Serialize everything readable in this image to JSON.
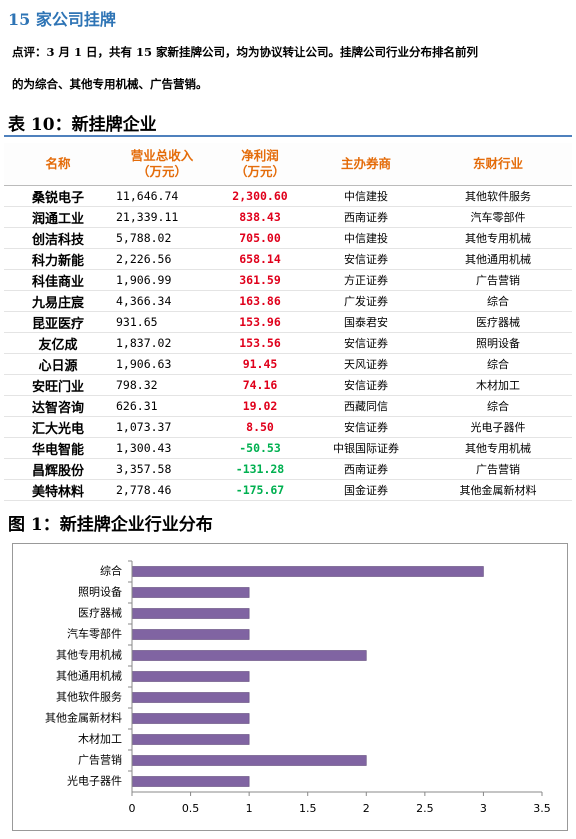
{
  "section_title": "15 家公司挂牌",
  "comment": [
    "点评：3 月 1 日，共有 15 家新挂牌公司，均为协议转让公司。挂牌公司行业分布排名前列",
    "的为综合、其他专用机械、广告营销。"
  ],
  "table": {
    "title": "表 10：新挂牌企业",
    "headers": [
      [
        "名称"
      ],
      [
        "营业总收入",
        "（万元）"
      ],
      [
        "净利润",
        "（万元）"
      ],
      [
        "主办券商"
      ],
      [
        "东财行业"
      ]
    ],
    "rows": [
      [
        "桑锐电子",
        "11,646.74",
        "2,300.60",
        "中信建投",
        "其他软件服务"
      ],
      [
        "润通工业",
        "21,339.11",
        "838.43",
        "西南证券",
        "汽车零部件"
      ],
      [
        "创洁科技",
        "5,788.02",
        "705.00",
        "中信建投",
        "其他专用机械"
      ],
      [
        "科力新能",
        "2,226.56",
        "658.14",
        "安信证券",
        "其他通用机械"
      ],
      [
        "科佳商业",
        "1,906.99",
        "361.59",
        "方正证券",
        "广告营销"
      ],
      [
        "九易庄宸",
        "4,366.34",
        "163.86",
        "广发证券",
        "综合"
      ],
      [
        "昆亚医疗",
        "931.65",
        "153.96",
        "国泰君安",
        "医疗器械"
      ],
      [
        "友亿成",
        "1,837.02",
        "153.56",
        "安信证券",
        "照明设备"
      ],
      [
        "心日源",
        "1,906.63",
        "91.45",
        "天风证券",
        "综合"
      ],
      [
        "安旺门业",
        "798.32",
        "74.16",
        "安信证券",
        "木材加工"
      ],
      [
        "达智咨询",
        "626.31",
        "19.02",
        "西藏同信",
        "综合"
      ],
      [
        "汇大光电",
        "1,073.37",
        "8.50",
        "安信证券",
        "光电子器件"
      ],
      [
        "华电智能",
        "1,300.43",
        "-50.53",
        "中银国际证券",
        "其他专用机械"
      ],
      [
        "昌辉股份",
        "3,357.58",
        "-131.28",
        "西南证券",
        "广告营销"
      ],
      [
        "美特林料",
        "2,778.46",
        "-175.67",
        "国金证券",
        "其他金属新材料"
      ]
    ]
  },
  "figure_title": "图 1：新挂牌企业行业分布",
  "chart_data": {
    "type": "barh",
    "categories": [
      "综合",
      "照明设备",
      "医疗器械",
      "汽车零部件",
      "其他专用机械",
      "其他通用机械",
      "其他软件服务",
      "其他金属新材料",
      "木材加工",
      "广告营销",
      "光电子器件"
    ],
    "values": [
      3,
      1,
      1,
      1,
      2,
      1,
      1,
      1,
      1,
      2,
      1
    ],
    "color": "#8064a2",
    "xlim": [
      0,
      3.5
    ],
    "xticks": [
      0,
      0.5,
      1,
      1.5,
      2,
      2.5,
      3,
      3.5
    ]
  }
}
